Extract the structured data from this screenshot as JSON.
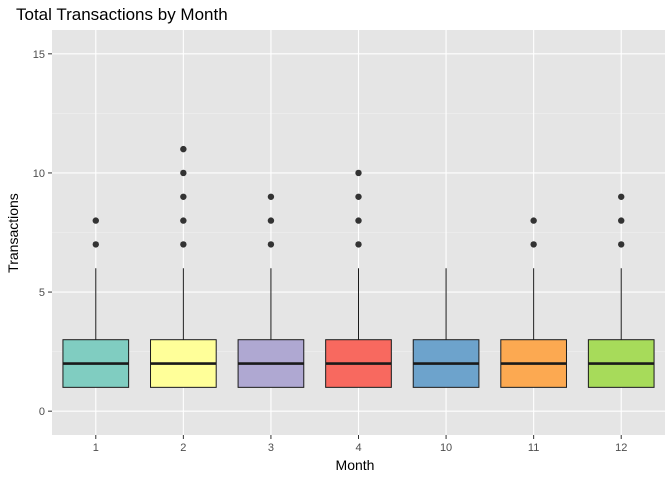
{
  "chart_data": {
    "type": "boxplot",
    "title": "Total Transactions by Month",
    "xlabel": "Month",
    "ylabel": "Transactions",
    "ylim": [
      -1,
      16
    ],
    "yticks": [
      0,
      5,
      10,
      15
    ],
    "grid": true,
    "legend": "none",
    "categories": [
      "1",
      "2",
      "3",
      "4",
      "10",
      "11",
      "12"
    ],
    "boxes": [
      {
        "category": "1",
        "color": "#80CDC1",
        "q1": 1,
        "median": 2,
        "q3": 3,
        "whisker_low": 1,
        "whisker_high": 6,
        "outliers": [
          7,
          8
        ]
      },
      {
        "category": "2",
        "color": "#FFFF99",
        "q1": 1,
        "median": 2,
        "q3": 3,
        "whisker_low": 1,
        "whisker_high": 6,
        "outliers": [
          7,
          8,
          9,
          10,
          11
        ]
      },
      {
        "category": "3",
        "color": "#AFA8D2",
        "q1": 1,
        "median": 2,
        "q3": 3,
        "whisker_low": 1,
        "whisker_high": 6,
        "outliers": [
          7,
          8,
          9
        ]
      },
      {
        "category": "4",
        "color": "#F8695F",
        "q1": 1,
        "median": 2,
        "q3": 3,
        "whisker_low": 1,
        "whisker_high": 6,
        "outliers": [
          7,
          8,
          9,
          10
        ]
      },
      {
        "category": "10",
        "color": "#6DA3CC",
        "q1": 1,
        "median": 2,
        "q3": 3,
        "whisker_low": 1,
        "whisker_high": 6,
        "outliers": []
      },
      {
        "category": "11",
        "color": "#FCA951",
        "q1": 1,
        "median": 2,
        "q3": 3,
        "whisker_low": 1,
        "whisker_high": 6,
        "outliers": [
          7,
          8
        ]
      },
      {
        "category": "12",
        "color": "#A7DB5A",
        "q1": 1,
        "median": 2,
        "q3": 3,
        "whisker_low": 1,
        "whisker_high": 6,
        "outliers": [
          7,
          8,
          9
        ]
      }
    ],
    "colors": {
      "panel_background": "#E5E5E5",
      "grid_major": "#FFFFFF",
      "grid_minor": "#F2F2F2",
      "box_stroke": "#1A1A1A",
      "outlier": "#333333",
      "tick_text": "#4D4D4D"
    }
  }
}
